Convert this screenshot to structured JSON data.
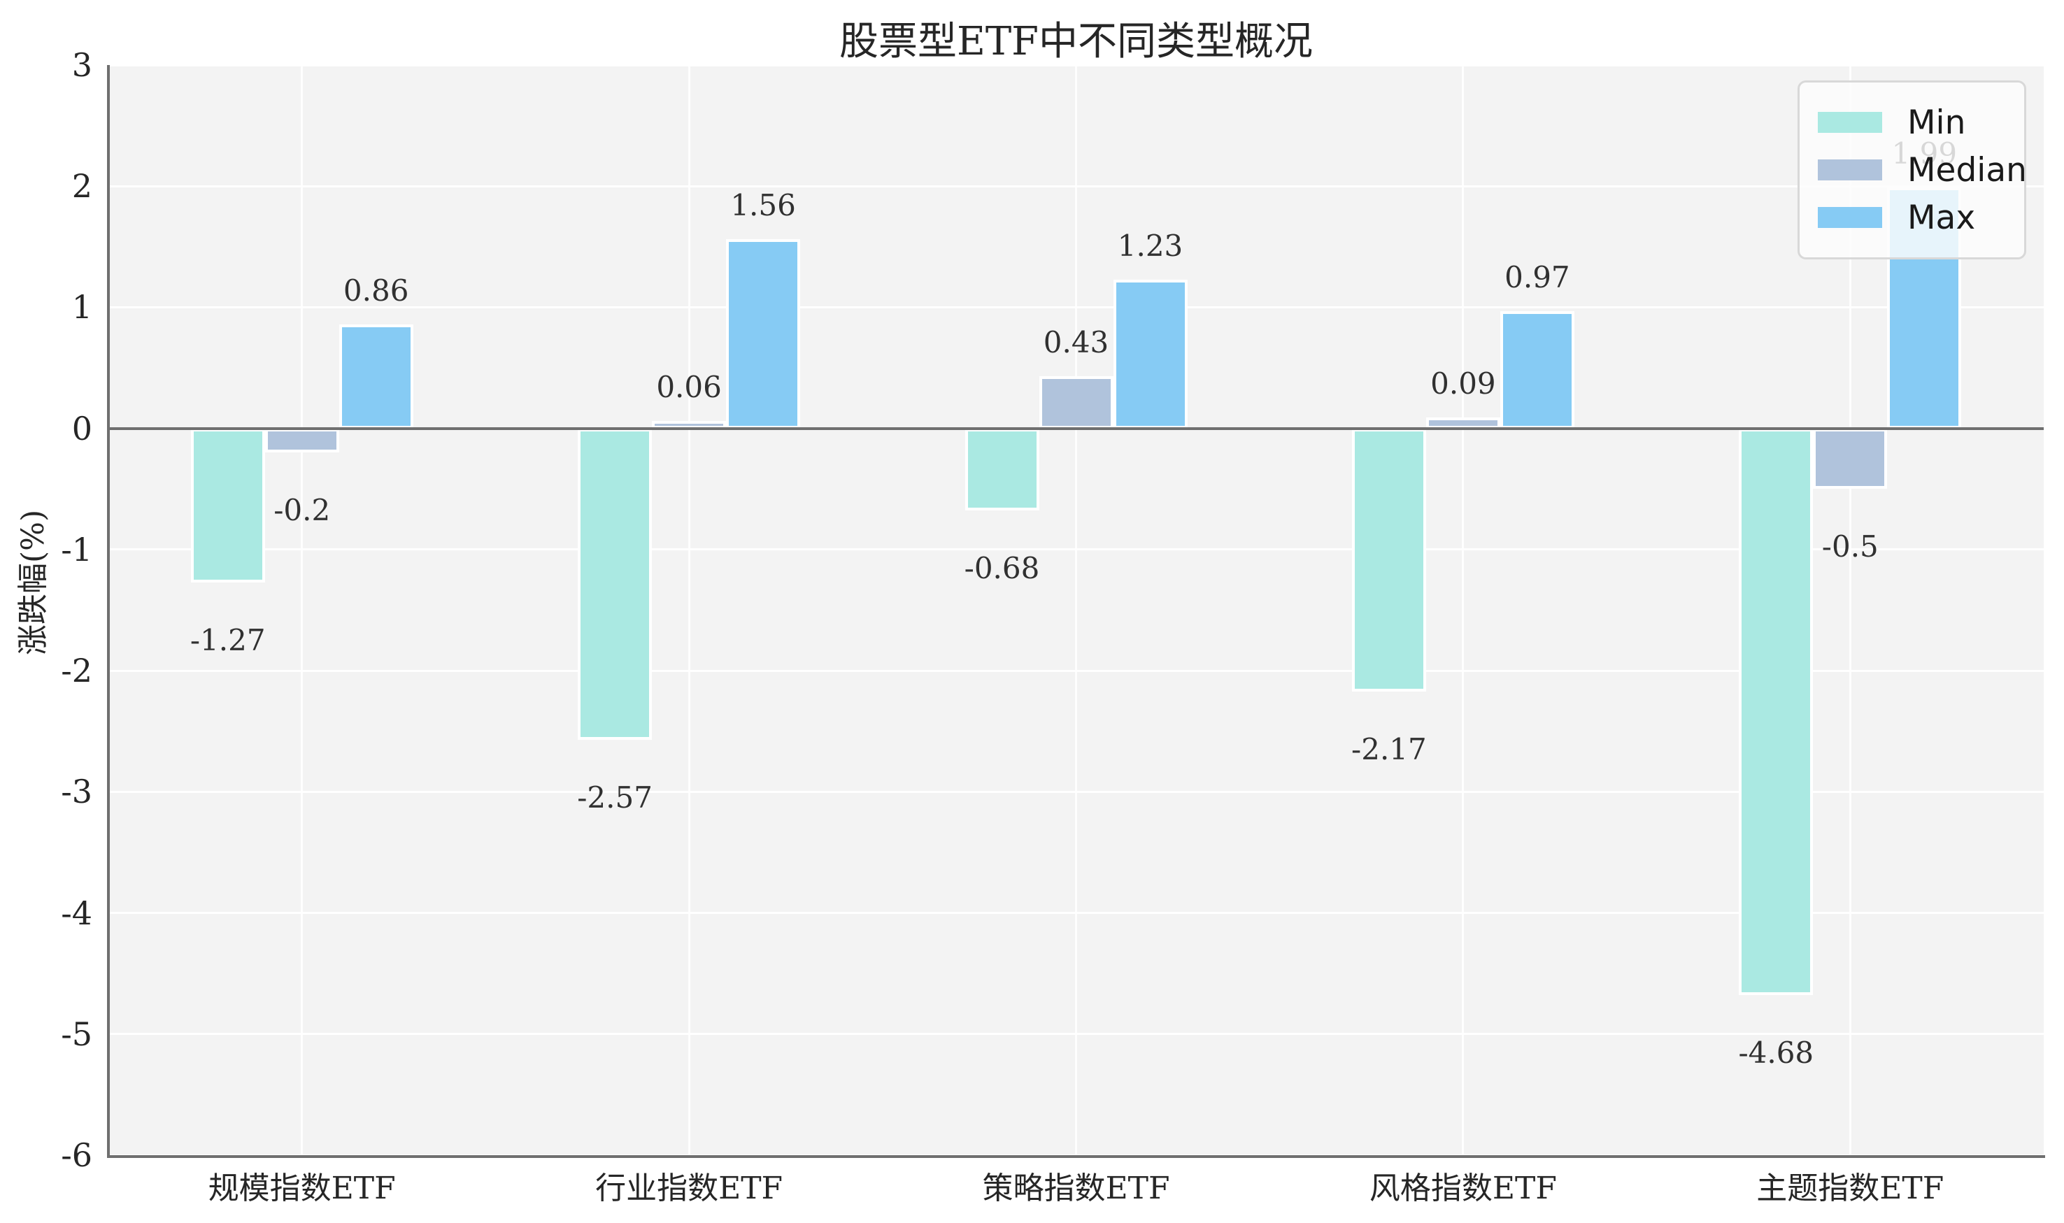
{
  "title": "股票型ETF中不同类型概况",
  "chart_data": {
    "type": "bar",
    "title": "股票型ETF中不同类型概况",
    "xlabel": "",
    "ylabel": "涨跌幅(%)",
    "categories": [
      "规模指数ETF",
      "行业指数ETF",
      "策略指数ETF",
      "风格指数ETF",
      "主题指数ETF"
    ],
    "series": [
      {
        "name": "Min",
        "color": "#aae9e2",
        "values": [
          -1.27,
          -2.57,
          -0.68,
          -2.17,
          -4.68
        ],
        "labels": [
          "-1.27",
          "-2.57",
          "-0.68",
          "-2.17",
          "-4.68"
        ]
      },
      {
        "name": "Median",
        "color": "#b0c3dc",
        "values": [
          -0.2,
          0.06,
          0.43,
          0.09,
          -0.5
        ],
        "labels": [
          "-0.2",
          "0.06",
          "0.43",
          "0.09",
          "-0.5"
        ]
      },
      {
        "name": "Max",
        "color": "#86cbf4",
        "values": [
          0.86,
          1.56,
          1.23,
          0.97,
          1.99
        ],
        "labels": [
          "0.86",
          "1.56",
          "1.23",
          "0.97",
          "1.99"
        ]
      }
    ],
    "ylim": [
      -6,
      3
    ],
    "yticks": [
      "3",
      "2",
      "1",
      "0",
      "-1",
      "-2",
      "-3",
      "-4",
      "-5",
      "-6"
    ],
    "grid": true,
    "legend_position": "upper right",
    "legend_entries": [
      "Min",
      "Median",
      "Max"
    ],
    "colors": {
      "plot_background": "#f3f3f3",
      "figure_background": "#ffffff",
      "gridline": "#ffffff",
      "axis_spine": "#6f6f6f",
      "text": "#262626"
    }
  }
}
